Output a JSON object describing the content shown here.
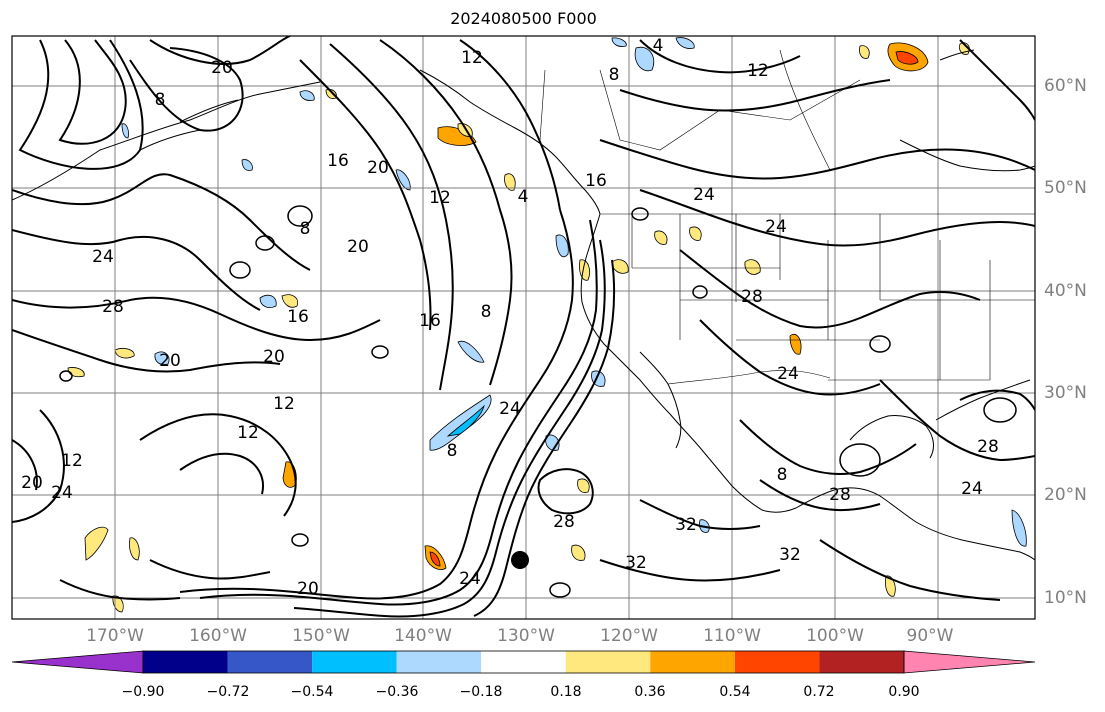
{
  "title": "2024080500 F000",
  "map": {
    "longitude_labels": [
      "170°W",
      "160°W",
      "150°W",
      "140°W",
      "130°W",
      "120°W",
      "110°W",
      "100°W",
      "90°W"
    ],
    "latitude_labels": [
      "60°N",
      "50°N",
      "40°N",
      "30°N",
      "20°N",
      "10°N"
    ],
    "contour_labels": [
      "20",
      "12",
      "8",
      "4",
      "12",
      "8",
      "16",
      "20",
      "12",
      "16",
      "24",
      "20",
      "24",
      "28",
      "16",
      "20",
      "8",
      "12",
      "8",
      "16",
      "24",
      "28",
      "4",
      "24",
      "8",
      "20",
      "24",
      "12",
      "12",
      "20",
      "24",
      "20",
      "24",
      "28",
      "32",
      "32",
      "8",
      "28",
      "32",
      "28",
      "24"
    ],
    "marker": "storm-center-dot"
  },
  "colorbar": {
    "colors": [
      "#9932cc",
      "#00008b",
      "#3557c8",
      "#00bfff",
      "#add8ff",
      "#ffffff",
      "#ffe97f",
      "#ffa500",
      "#ff4500",
      "#b22222",
      "#ff85b0"
    ],
    "tick_labels": [
      "−0.90",
      "−0.72",
      "−0.54",
      "−0.36",
      "−0.18",
      "0.18",
      "0.36",
      "0.54",
      "0.72",
      "0.90"
    ]
  }
}
